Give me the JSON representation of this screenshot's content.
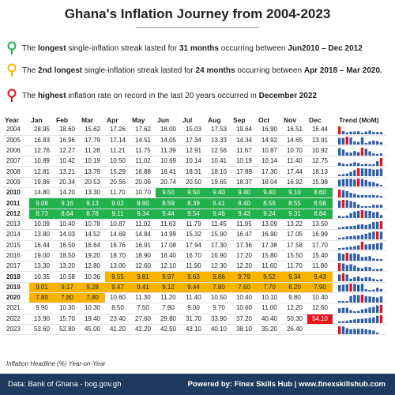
{
  "title": "Ghana's Inflation Journey from 2004-2023",
  "notes": [
    {
      "color": "#22b14c",
      "pre": "The ",
      "bold1": "longest",
      "mid": " single-inflation streak lasted for ",
      "bold2": "31 months",
      "post": " occurring between  ",
      "bold3": "Jun2010 – Dec 2012"
    },
    {
      "color": "#f7b500",
      "pre": "The ",
      "bold1": "2nd longest",
      "mid": " single-inflation streak lasted for ",
      "bold2": "24 months",
      "post": " occurring between  ",
      "bold3": "Apr 2018 – Mar 2020."
    },
    {
      "color": "#e8141b",
      "pre": "The ",
      "bold1": "highest",
      "mid": " inflation rate on record in the last 20 years occurred in ",
      "bold2": "December 2022",
      "post": "",
      "bold3": ""
    }
  ],
  "headers": {
    "year": "Year",
    "months": [
      "Jan",
      "Feb",
      "Mar",
      "Apr",
      "May",
      "Jun",
      "Jul",
      "Aug",
      "Sep",
      "Oct",
      "Nov",
      "Dec"
    ],
    "trend": "Trend (MoM)"
  },
  "chart_data": {
    "type": "table",
    "rows": [
      {
        "year": "2004",
        "values": [
          "28.95",
          "18.60",
          "15.62",
          "17.26",
          "17.62",
          "18.00",
          "15.03",
          "17.53",
          "19.64",
          "16.90",
          "16.51",
          "16.44"
        ]
      },
      {
        "year": "2005",
        "values": [
          "16.83",
          "16.96",
          "17.79",
          "17.14",
          "14.51",
          "14.05",
          "17.34",
          "13.33",
          "14.34",
          "14.92",
          "14.65",
          "13.91"
        ]
      },
      {
        "year": "2006",
        "values": [
          "12.76",
          "12.27",
          "11.28",
          "11.21",
          "11.75",
          "11.39",
          "12.91",
          "12.56",
          "11.67",
          "10.87",
          "10.70",
          "10.92"
        ]
      },
      {
        "year": "2007",
        "values": [
          "10.89",
          "10.42",
          "10.19",
          "10.50",
          "11.02",
          "10.69",
          "10.14",
          "10.41",
          "10.19",
          "10.14",
          "11.40",
          "12.75"
        ]
      },
      {
        "year": "2008",
        "values": [
          "12.81",
          "13.21",
          "13.79",
          "15.29",
          "16.88",
          "18.41",
          "18.31",
          "18.10",
          "17.89",
          "17.30",
          "17.44",
          "18.13"
        ]
      },
      {
        "year": "2009",
        "values": [
          "19.86",
          "20.34",
          "20.53",
          "20.56",
          "20.06",
          "20.74",
          "20.50",
          "19.65",
          "18.37",
          "18.04",
          "16.92",
          "15.98"
        ]
      },
      {
        "year": "2010",
        "values": [
          "14.80",
          "14.20",
          "13.30",
          "11.70",
          "10.70",
          "9.50",
          "9.50",
          "9.40",
          "9.40",
          "9.40",
          "9.10",
          "8.60"
        ]
      },
      {
        "year": "2011",
        "values": [
          "9.08",
          "9.16",
          "9.13",
          "9.02",
          "8.90",
          "8.59",
          "8.39",
          "8.41",
          "8.40",
          "8.56",
          "8.55",
          "8.58"
        ]
      },
      {
        "year": "2012",
        "values": [
          "8.73",
          "8.64",
          "8.78",
          "9.11",
          "9.34",
          "9.44",
          "9.54",
          "9.46",
          "9.43",
          "9.24",
          "9.31",
          "8.84"
        ]
      },
      {
        "year": "2013",
        "values": [
          "10.09",
          "10.40",
          "10.78",
          "10.87",
          "11.02",
          "11.63",
          "11.79",
          "11.45",
          "11.95",
          "13.09",
          "13.22",
          "13.50"
        ]
      },
      {
        "year": "2014",
        "values": [
          "13.80",
          "14.03",
          "14.52",
          "14.69",
          "14.84",
          "14.99",
          "15.32",
          "15.90",
          "16.47",
          "16.90",
          "17.05",
          "16.99"
        ]
      },
      {
        "year": "2015",
        "values": [
          "16.44",
          "16.50",
          "16.64",
          "16.76",
          "16.91",
          "17.08",
          "17.94",
          "17.30",
          "17.36",
          "17.38",
          "17.58",
          "17.70"
        ]
      },
      {
        "year": "2016",
        "values": [
          "19.00",
          "18.50",
          "19.20",
          "18.70",
          "18.90",
          "18.40",
          "16.70",
          "16.90",
          "17.20",
          "15.80",
          "15.50",
          "15.40"
        ]
      },
      {
        "year": "2017",
        "values": [
          "13.30",
          "13.20",
          "12.80",
          "13.00",
          "12.60",
          "12.10",
          "11.90",
          "12.30",
          "12.20",
          "11.60",
          "11.70",
          "11.80"
        ]
      },
      {
        "year": "2018",
        "values": [
          "10.35",
          "10.58",
          "10.36",
          "9.55",
          "9.81",
          "9.97",
          "9.63",
          "9.86",
          "9.79",
          "9.52",
          "9.34",
          "9.43"
        ]
      },
      {
        "year": "2019",
        "values": [
          "9.01",
          "9.17",
          "9.28",
          "9.47",
          "9.41",
          "9.12",
          "9.44",
          "7.80",
          "7.60",
          "7.70",
          "8.20",
          "7.90"
        ]
      },
      {
        "year": "2020",
        "values": [
          "7.80",
          "7.80",
          "7.80",
          "10.60",
          "11.30",
          "11.20",
          "11.40",
          "10.50",
          "10.40",
          "10.10",
          "9.80",
          "10.40"
        ]
      },
      {
        "year": "2021",
        "values": [
          "9.90",
          "10.30",
          "10.30",
          "8.50",
          "7.50",
          "7.80",
          "9.00",
          "9.70",
          "10.60",
          "11.00",
          "12.20",
          "12.60"
        ]
      },
      {
        "year": "2022",
        "values": [
          "13.90",
          "15.70",
          "19.40",
          "23.40",
          "27.60",
          "29.80",
          "31.70",
          "33.90",
          "37.20",
          "40.40",
          "50.30",
          "54.10"
        ]
      },
      {
        "year": "2023",
        "values": [
          "53.60",
          "52.80",
          "45.00",
          "41.20",
          "42.20",
          "42.50",
          "43.10",
          "40.10",
          "38.10",
          "35.20",
          "26.40",
          ""
        ]
      }
    ],
    "highlights": {
      "green": {
        "from": [
          2010,
          6
        ],
        "to": [
          2012,
          12
        ]
      },
      "yellow": {
        "from": [
          2018,
          4
        ],
        "to": [
          2020,
          3
        ]
      },
      "red": {
        "cell": [
          2022,
          12
        ]
      }
    },
    "bold_years": [
      "2010",
      "2011",
      "2012",
      "2018",
      "2019",
      "2020"
    ],
    "trend_colors": {
      "normal": "#2e5fa6",
      "max": "#e8141b"
    }
  },
  "footnote": "Inflation Headline  (%) Year-on-Year",
  "footer": {
    "source": "Data: Bank of Ghana - bog.gov.gh",
    "powered": "Powered by: Finex Skills Hub | www.finexskillshub.com"
  }
}
